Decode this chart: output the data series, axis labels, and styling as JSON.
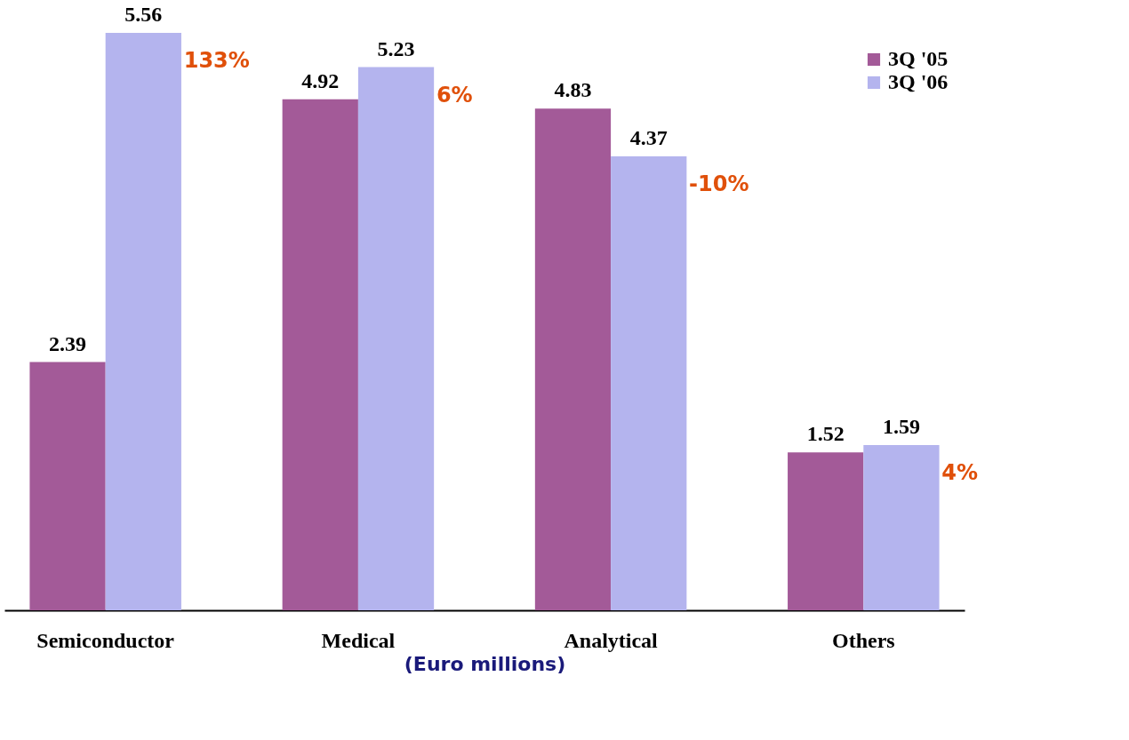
{
  "chart_data": {
    "type": "bar",
    "xlabel": "(Euro millions)",
    "categories": [
      "Semiconductor",
      "Medical",
      "Analytical",
      "Others"
    ],
    "series": [
      {
        "name": "3Q '05",
        "color": "#a35a98",
        "values": [
          2.39,
          4.92,
          4.83,
          1.52
        ]
      },
      {
        "name": "3Q '06",
        "color": "#b4b4ee",
        "values": [
          5.56,
          5.23,
          4.37,
          1.59
        ]
      }
    ],
    "data_labels": true,
    "legend": "top right",
    "grid": false,
    "annotations": [
      "133%",
      "6%",
      "-10%",
      "4%"
    ]
  }
}
